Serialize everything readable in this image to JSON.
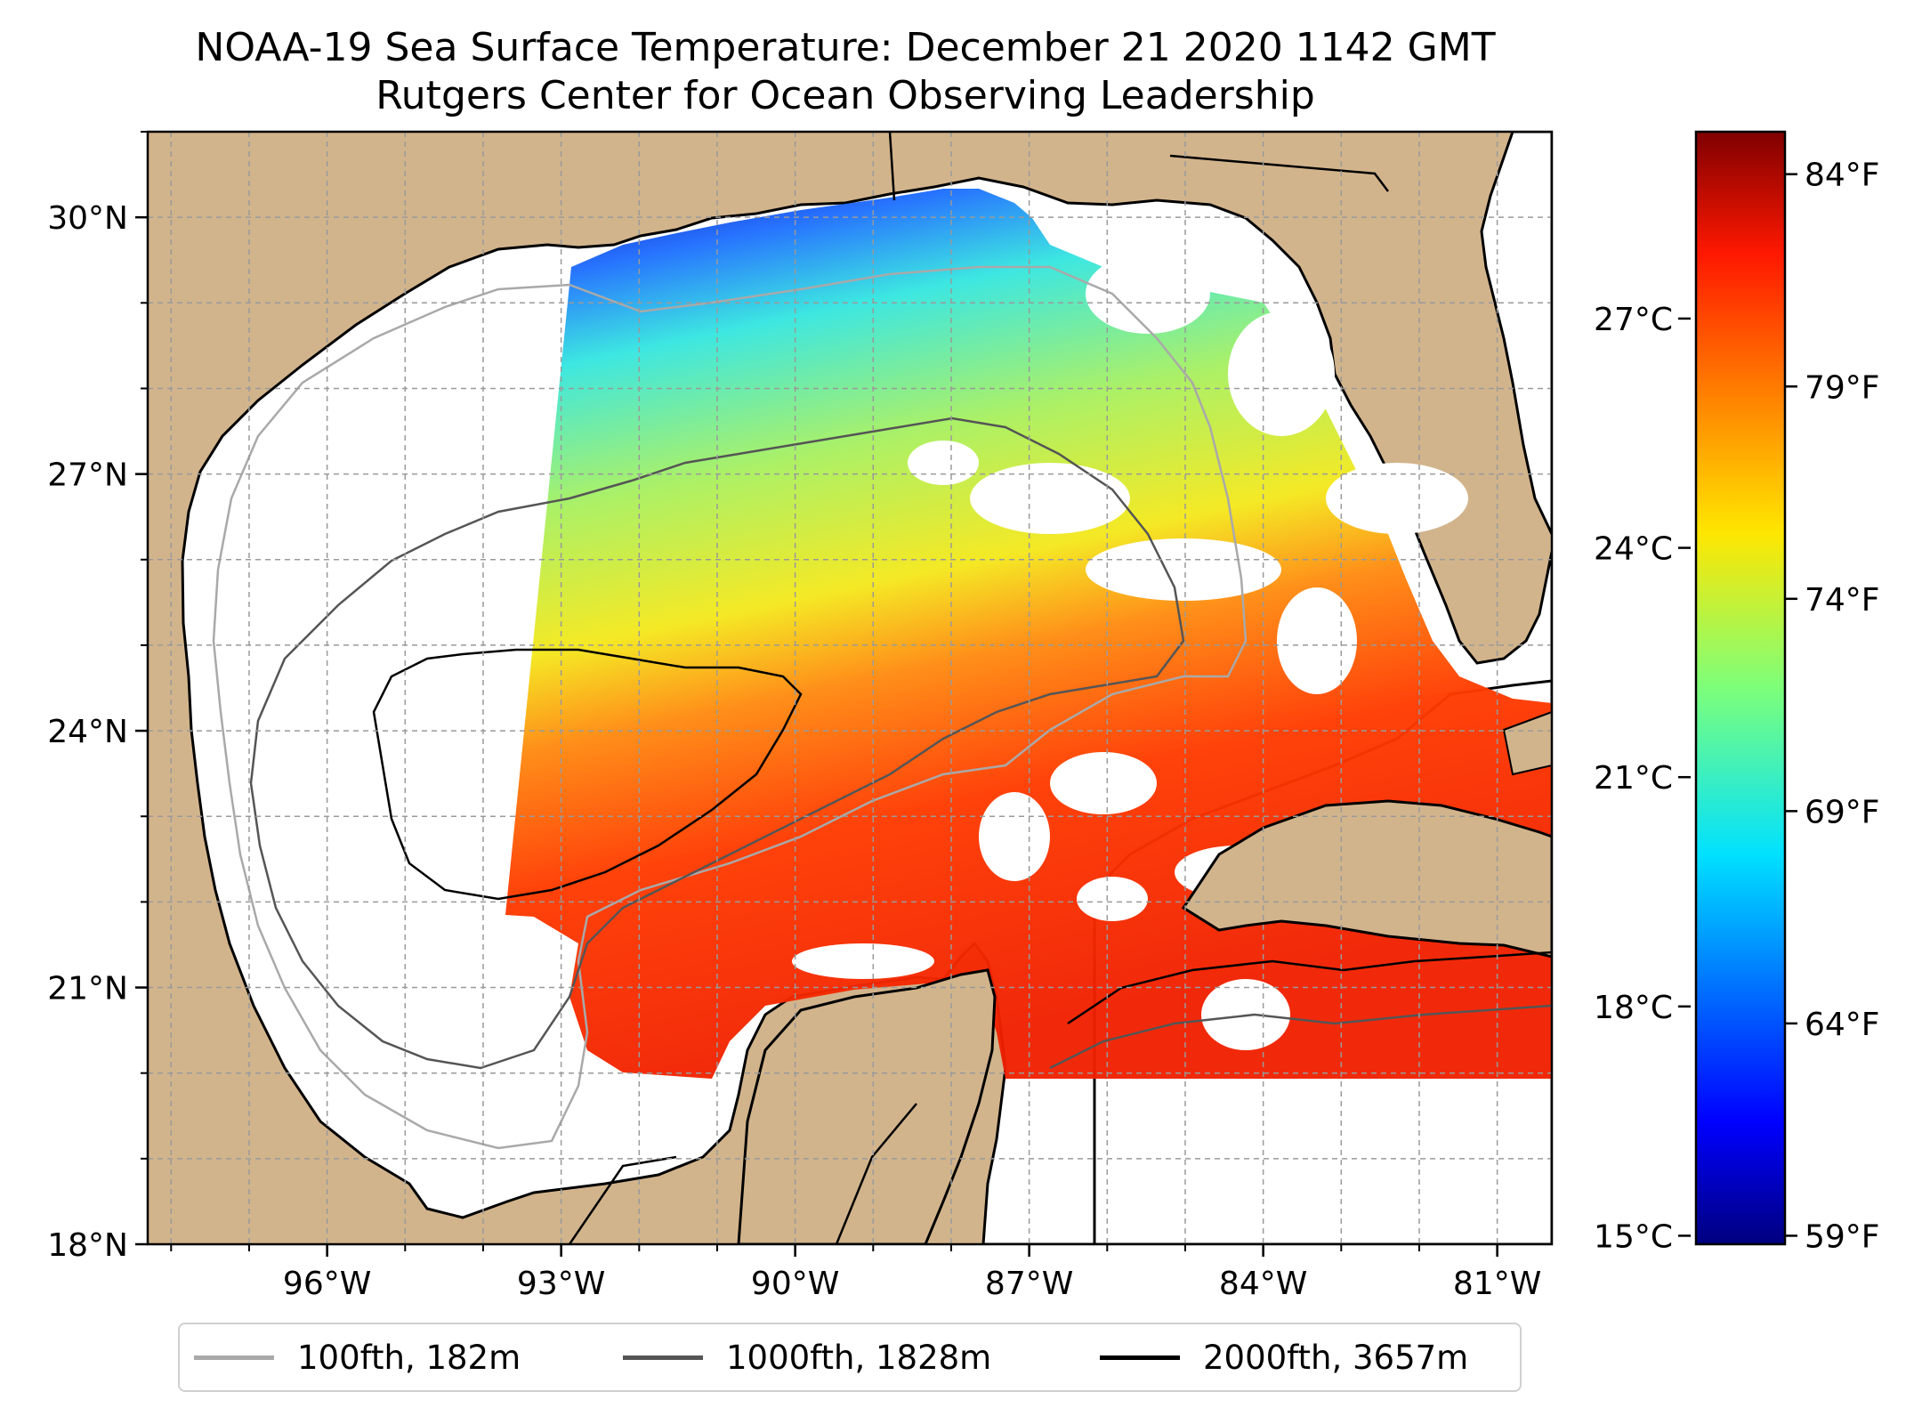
{
  "title_line1": "NOAA-19 Sea Surface Temperature: December 21 2020 1142 GMT",
  "title_line2": "Rutgers Center for Ocean Observing Leadership",
  "map": {
    "lat_range": [
      18,
      31
    ],
    "lon_range": [
      -98.3,
      -80.3
    ],
    "lat_ticks": [
      "18°N",
      "21°N",
      "24°N",
      "27°N",
      "30°N"
    ],
    "lon_ticks": [
      "96°W",
      "93°W",
      "90°W",
      "87°W",
      "84°W",
      "81°W"
    ],
    "gridlines": true,
    "land_color": "#d2b48c",
    "no_data_color": "#ffffff",
    "lake_color": "#8fa8d8"
  },
  "colorbar": {
    "colormap": "jet",
    "celsius_ticks": [
      "15°C",
      "18°C",
      "21°C",
      "24°C",
      "27°C"
    ],
    "fahrenheit_ticks": [
      "59°F",
      "64°F",
      "69°F",
      "74°F",
      "79°F",
      "84°F"
    ],
    "range_f": [
      58.8,
      85.0
    ]
  },
  "legend": {
    "items": [
      {
        "label": "100fth, 182m",
        "color": "#a9a9a9"
      },
      {
        "label": "1000fth, 1828m",
        "color": "#555555"
      },
      {
        "label": "2000fth, 3657m",
        "color": "#000000"
      }
    ]
  }
}
